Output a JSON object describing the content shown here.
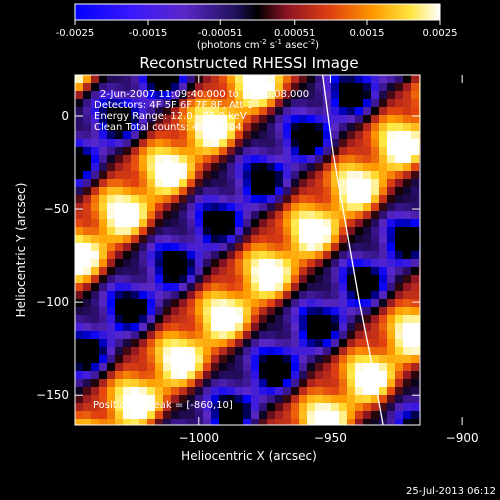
{
  "chart_data": {
    "type": "heatmap",
    "title": "Reconstructed RHESSI Image",
    "colorbar": {
      "ticks": [
        "-0.0025",
        "-0.0015",
        "-0.00051",
        "0.00051",
        "0.0015",
        "0.0025"
      ],
      "tick_values": [
        -0.0025,
        -0.0015,
        -0.00051,
        0.00051,
        0.0015,
        0.0025
      ],
      "range": [
        -0.0025,
        0.0025
      ],
      "unit_base": "(photons cm",
      "unit_exp1": "-2",
      "unit_mid1": " s",
      "unit_exp2": "-1",
      "unit_mid2": " asec",
      "unit_exp3": "-2",
      "unit_end": ")"
    },
    "info_lines": [
      "2-Jun-2007 11:09:40.000 to 11:26:08.000",
      "Detectors: 4F 5F 6F 7F 8F, Att 1",
      "Energy Range: 12.0 - 25.0 keV",
      "Clean    Total counts: 4.96E+04"
    ],
    "peak_text": "Position of Peak = [-860,10]",
    "xlabel": "Heliocentric X (arcsec)",
    "ylabel": "Heliocentric Y (arcsec)",
    "xlim": [
      -1047,
      -916
    ],
    "ylim": [
      -166,
      22
    ],
    "x_ticks": [
      {
        "label": "−1000",
        "value": -1000
      },
      {
        "label": "−950",
        "value": -950
      },
      {
        "label": "−900",
        "value": -900
      }
    ],
    "y_ticks": [
      {
        "label": "0",
        "value": 0
      },
      {
        "label": "−50",
        "value": -50
      },
      {
        "label": "−100",
        "value": -100
      },
      {
        "label": "−150",
        "value": -150
      }
    ],
    "limb": [
      [
        -953,
        22
      ],
      [
        -949,
        -20
      ],
      [
        -944,
        -60
      ],
      [
        -939,
        -100
      ],
      [
        -934,
        -135
      ],
      [
        -930,
        -166
      ]
    ],
    "grid": false,
    "colormap": [
      "#000000",
      "#0000ff",
      "#5a28c8",
      "#30107a",
      "#000000",
      "#8c1424",
      "#e04010",
      "#ff9c00",
      "#ffe640",
      "#ffffff"
    ]
  },
  "timestamp": "25-Jul-2013 06:12"
}
